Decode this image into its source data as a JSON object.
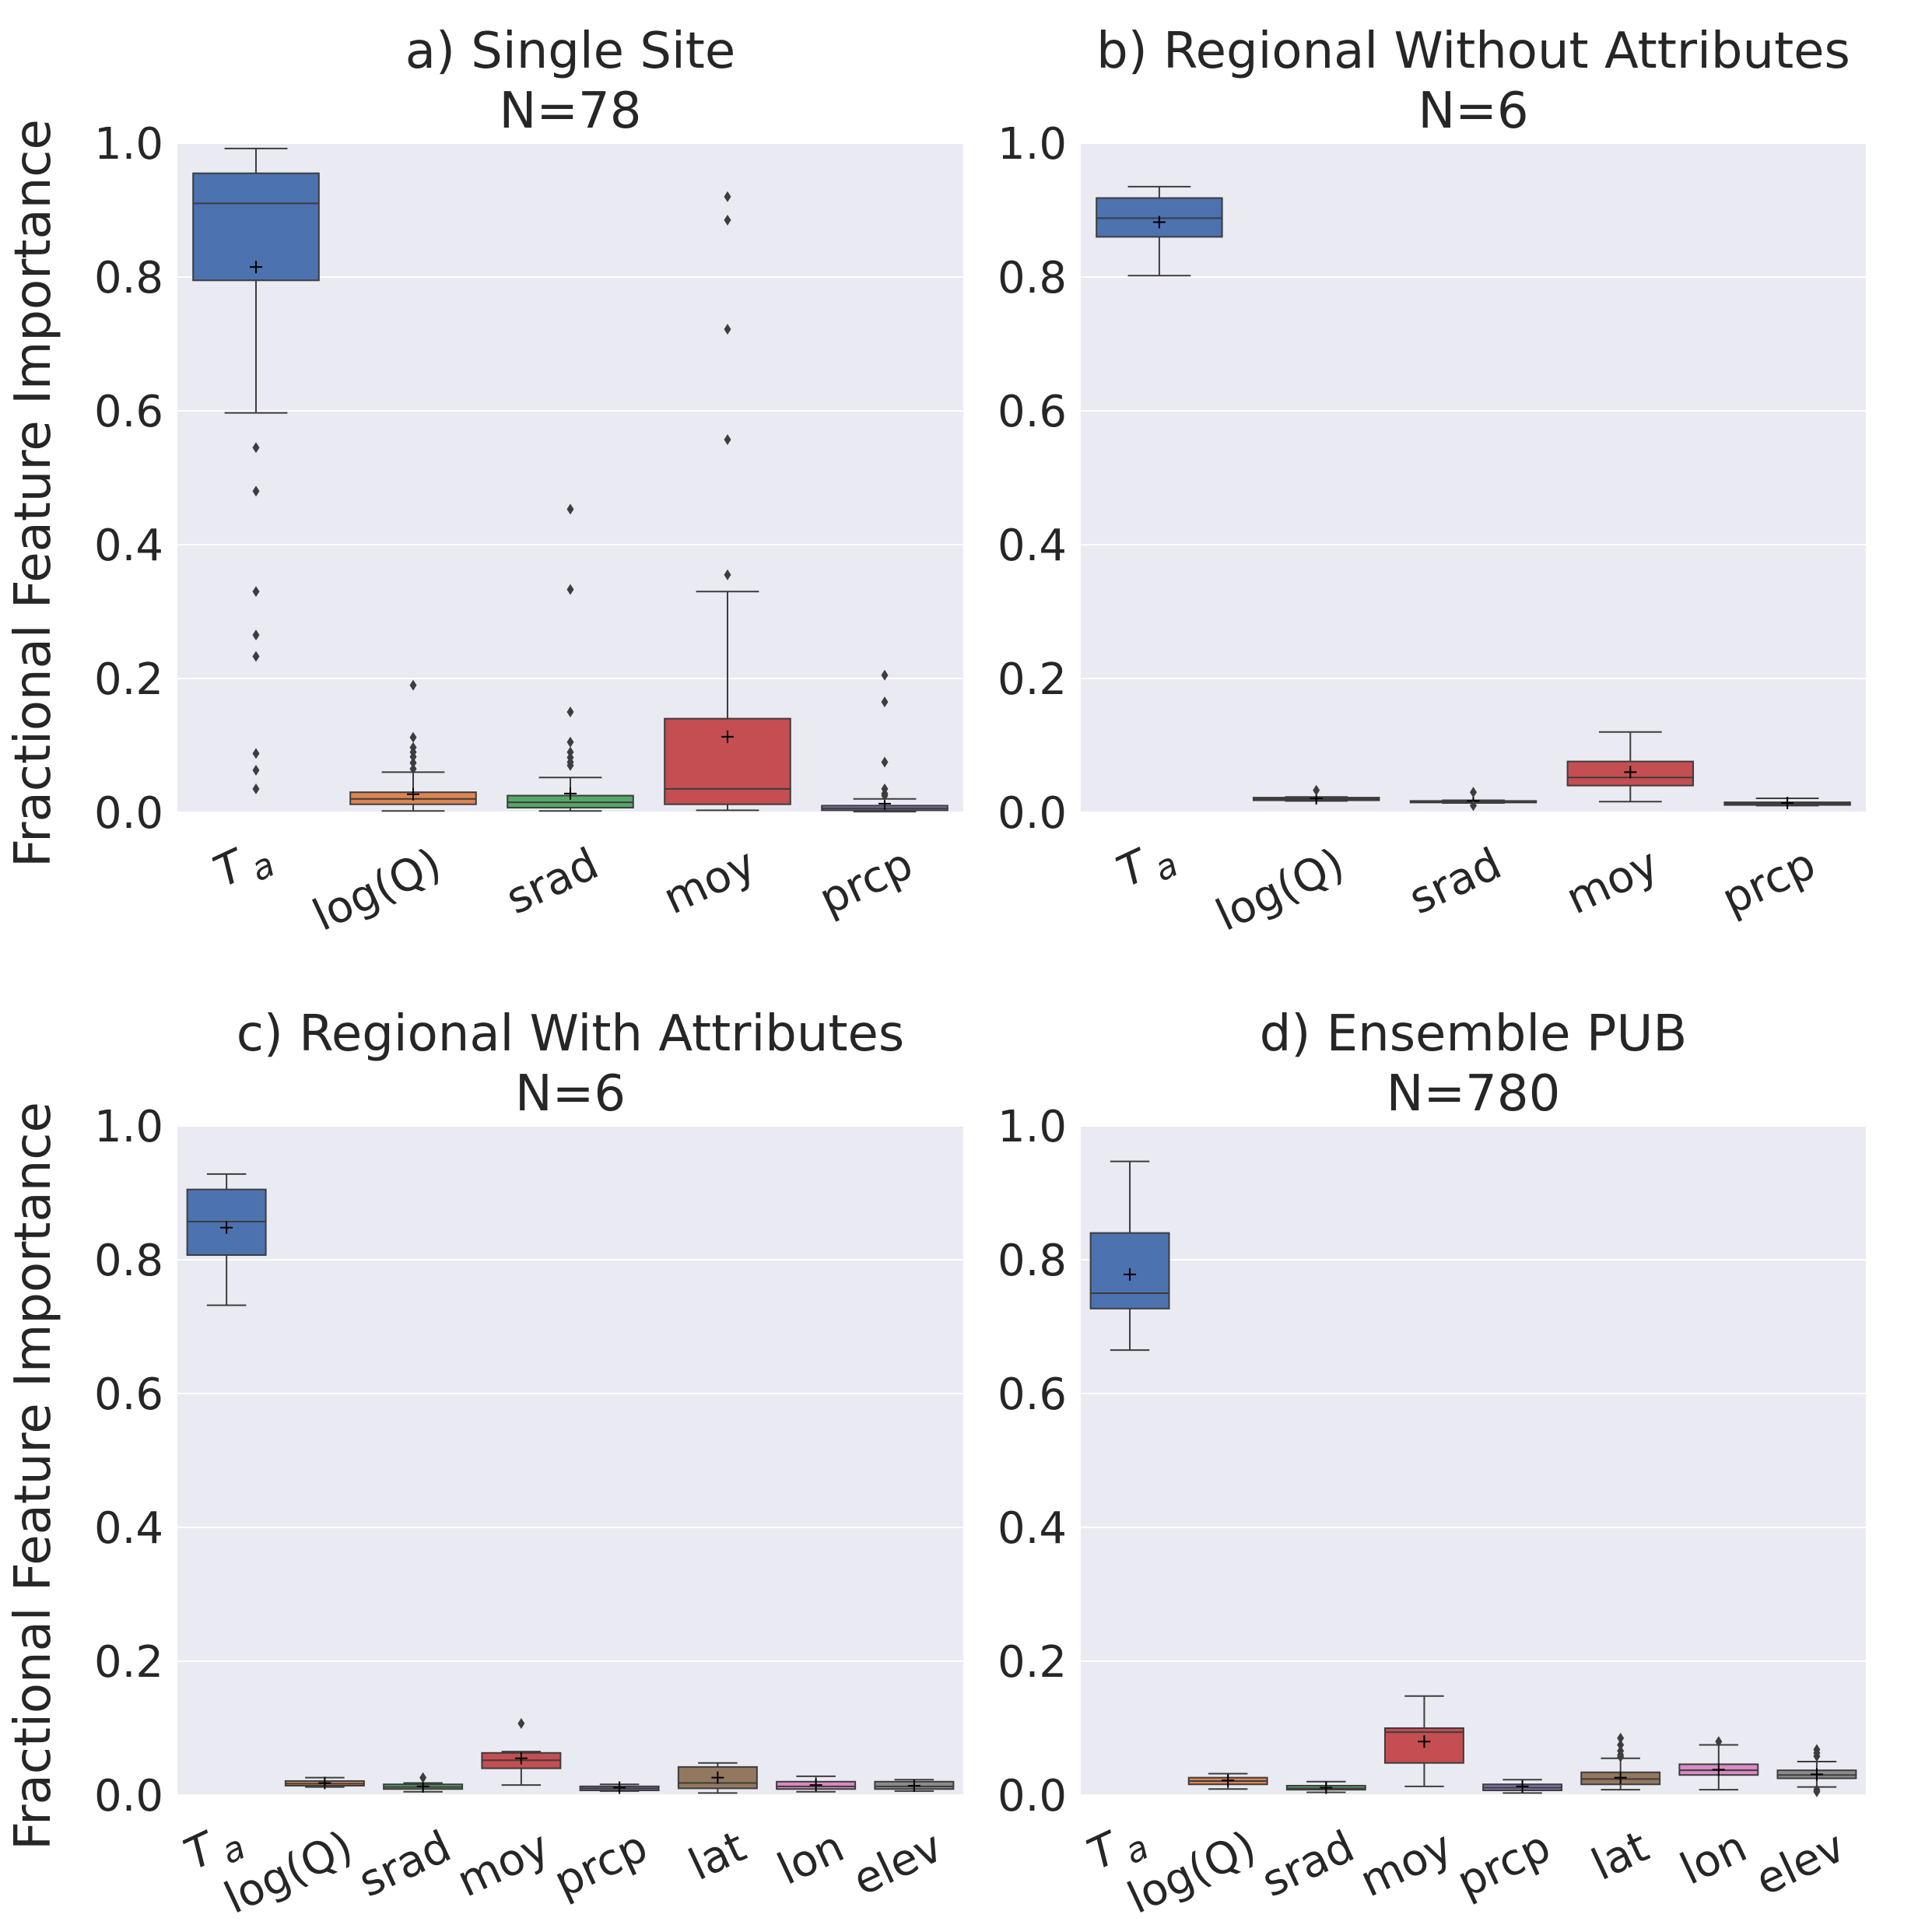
{
  "figure": {
    "ylabel": "Fractional Feature Importance",
    "yticks": [
      "0.0",
      "0.2",
      "0.4",
      "0.6",
      "0.8",
      "1.0"
    ],
    "colors": {
      "background": "#eaeaf2",
      "grid": "#ffffff",
      "line": "#3d3d3d",
      "palette": [
        "#4c72b0",
        "#dd8452",
        "#55a868",
        "#c44e52",
        "#8172b3",
        "#937860",
        "#da8bc3",
        "#8c8c8c"
      ]
    }
  },
  "chart_data": [
    {
      "type": "box",
      "title": "a) Single Site",
      "subtitle": "N=78",
      "ylabel": "Fractional Feature Importance",
      "ylim": [
        0,
        1
      ],
      "categories": [
        "Ta",
        "log(Q)",
        "srad",
        "moy",
        "prcp"
      ],
      "boxes": [
        {
          "label": "Ta",
          "whislo": 0.597,
          "q1": 0.795,
          "med": 0.91,
          "q3": 0.955,
          "whishi": 0.992,
          "mean": 0.815,
          "fliers": [
            0.545,
            0.48,
            0.33,
            0.265,
            0.233,
            0.088,
            0.063,
            0.035
          ]
        },
        {
          "label": "log(Q)",
          "whislo": 0.002,
          "q1": 0.012,
          "med": 0.02,
          "q3": 0.03,
          "whishi": 0.06,
          "mean": 0.027,
          "fliers": [
            0.19,
            0.112,
            0.097,
            0.09,
            0.083,
            0.074,
            0.065
          ]
        },
        {
          "label": "srad",
          "whislo": 0.002,
          "q1": 0.007,
          "med": 0.015,
          "q3": 0.025,
          "whishi": 0.052,
          "mean": 0.028,
          "fliers": [
            0.453,
            0.333,
            0.15,
            0.105,
            0.09,
            0.082,
            0.075,
            0.07
          ]
        },
        {
          "label": "moy",
          "whislo": 0.003,
          "q1": 0.012,
          "med": 0.035,
          "q3": 0.14,
          "whishi": 0.33,
          "mean": 0.113,
          "fliers": [
            0.92,
            0.885,
            0.722,
            0.557,
            0.355
          ]
        },
        {
          "label": "prcp",
          "whislo": 0.001,
          "q1": 0.003,
          "med": 0.006,
          "q3": 0.01,
          "whishi": 0.02,
          "mean": 0.013,
          "fliers": [
            0.205,
            0.165,
            0.075,
            0.035,
            0.028,
            0.025
          ]
        }
      ]
    },
    {
      "type": "box",
      "title": "b) Regional Without Attributes",
      "subtitle": "N=6",
      "ylabel": "",
      "ylim": [
        0,
        1
      ],
      "categories": [
        "Ta",
        "log(Q)",
        "srad",
        "moy",
        "prcp"
      ],
      "boxes": [
        {
          "label": "Ta",
          "whislo": 0.802,
          "q1": 0.86,
          "med": 0.888,
          "q3": 0.918,
          "whishi": 0.935,
          "mean": 0.882,
          "fliers": []
        },
        {
          "label": "log(Q)",
          "whislo": 0.017,
          "q1": 0.018,
          "med": 0.02,
          "q3": 0.022,
          "whishi": 0.023,
          "mean": 0.021,
          "fliers": [
            0.033
          ]
        },
        {
          "label": "srad",
          "whislo": 0.014,
          "q1": 0.015,
          "med": 0.016,
          "q3": 0.017,
          "whishi": 0.018,
          "mean": 0.017,
          "fliers": [
            0.03,
            0.01
          ]
        },
        {
          "label": "moy",
          "whislo": 0.016,
          "q1": 0.04,
          "med": 0.052,
          "q3": 0.076,
          "whishi": 0.12,
          "mean": 0.06,
          "fliers": []
        },
        {
          "label": "prcp",
          "whislo": 0.01,
          "q1": 0.011,
          "med": 0.013,
          "q3": 0.015,
          "whishi": 0.021,
          "mean": 0.014,
          "fliers": []
        }
      ]
    },
    {
      "type": "box",
      "title": "c) Regional With Attributes",
      "subtitle": "N=6",
      "ylabel": "Fractional Feature Importance",
      "ylim": [
        0,
        1
      ],
      "categories": [
        "Ta",
        "log(Q)",
        "srad",
        "moy",
        "prcp",
        "lat",
        "lon",
        "elev"
      ],
      "boxes": [
        {
          "label": "Ta",
          "whislo": 0.732,
          "q1": 0.807,
          "med": 0.857,
          "q3": 0.905,
          "whishi": 0.928,
          "mean": 0.848,
          "fliers": []
        },
        {
          "label": "log(Q)",
          "whislo": 0.012,
          "q1": 0.014,
          "med": 0.017,
          "q3": 0.021,
          "whishi": 0.026,
          "mean": 0.018,
          "fliers": []
        },
        {
          "label": "srad",
          "whislo": 0.005,
          "q1": 0.009,
          "med": 0.012,
          "q3": 0.016,
          "whishi": 0.018,
          "mean": 0.013,
          "fliers": [
            0.026
          ]
        },
        {
          "label": "moy",
          "whislo": 0.015,
          "q1": 0.04,
          "med": 0.052,
          "q3": 0.063,
          "whishi": 0.065,
          "mean": 0.055,
          "fliers": [
            0.107
          ]
        },
        {
          "label": "prcp",
          "whislo": 0.006,
          "q1": 0.007,
          "med": 0.01,
          "q3": 0.013,
          "whishi": 0.016,
          "mean": 0.011,
          "fliers": []
        },
        {
          "label": "lat",
          "whislo": 0.003,
          "q1": 0.01,
          "med": 0.018,
          "q3": 0.042,
          "whishi": 0.048,
          "mean": 0.026,
          "fliers": []
        },
        {
          "label": "lon",
          "whislo": 0.005,
          "q1": 0.009,
          "med": 0.013,
          "q3": 0.02,
          "whishi": 0.028,
          "mean": 0.015,
          "fliers": []
        },
        {
          "label": "elev",
          "whislo": 0.006,
          "q1": 0.009,
          "med": 0.013,
          "q3": 0.02,
          "whishi": 0.023,
          "mean": 0.014,
          "fliers": []
        }
      ]
    },
    {
      "type": "box",
      "title": "d) Ensemble PUB",
      "subtitle": "N=780",
      "ylabel": "",
      "ylim": [
        0,
        1
      ],
      "categories": [
        "Ta",
        "log(Q)",
        "srad",
        "moy",
        "prcp",
        "lat",
        "lon",
        "elev"
      ],
      "boxes": [
        {
          "label": "Ta",
          "whislo": 0.665,
          "q1": 0.727,
          "med": 0.75,
          "q3": 0.84,
          "whishi": 0.947,
          "mean": 0.778,
          "fliers": []
        },
        {
          "label": "log(Q)",
          "whislo": 0.009,
          "q1": 0.016,
          "med": 0.021,
          "q3": 0.026,
          "whishi": 0.032,
          "mean": 0.022,
          "fliers": []
        },
        {
          "label": "srad",
          "whislo": 0.004,
          "q1": 0.008,
          "med": 0.01,
          "q3": 0.014,
          "whishi": 0.02,
          "mean": 0.011,
          "fliers": []
        },
        {
          "label": "moy",
          "whislo": 0.013,
          "q1": 0.048,
          "med": 0.094,
          "q3": 0.1,
          "whishi": 0.148,
          "mean": 0.08,
          "fliers": []
        },
        {
          "label": "prcp",
          "whislo": 0.003,
          "q1": 0.007,
          "med": 0.011,
          "q3": 0.016,
          "whishi": 0.023,
          "mean": 0.013,
          "fliers": []
        },
        {
          "label": "lat",
          "whislo": 0.008,
          "q1": 0.016,
          "med": 0.024,
          "q3": 0.034,
          "whishi": 0.055,
          "mean": 0.026,
          "fliers": [
            0.085,
            0.075,
            0.066,
            0.06,
            0.057
          ]
        },
        {
          "label": "lon",
          "whislo": 0.008,
          "q1": 0.03,
          "med": 0.037,
          "q3": 0.046,
          "whishi": 0.075,
          "mean": 0.038,
          "fliers": [
            0.08
          ]
        },
        {
          "label": "elev",
          "whislo": 0.012,
          "q1": 0.025,
          "med": 0.03,
          "q3": 0.037,
          "whishi": 0.05,
          "mean": 0.031,
          "fliers": [
            0.068,
            0.063,
            0.058,
            0.008,
            0.005
          ]
        }
      ]
    }
  ]
}
